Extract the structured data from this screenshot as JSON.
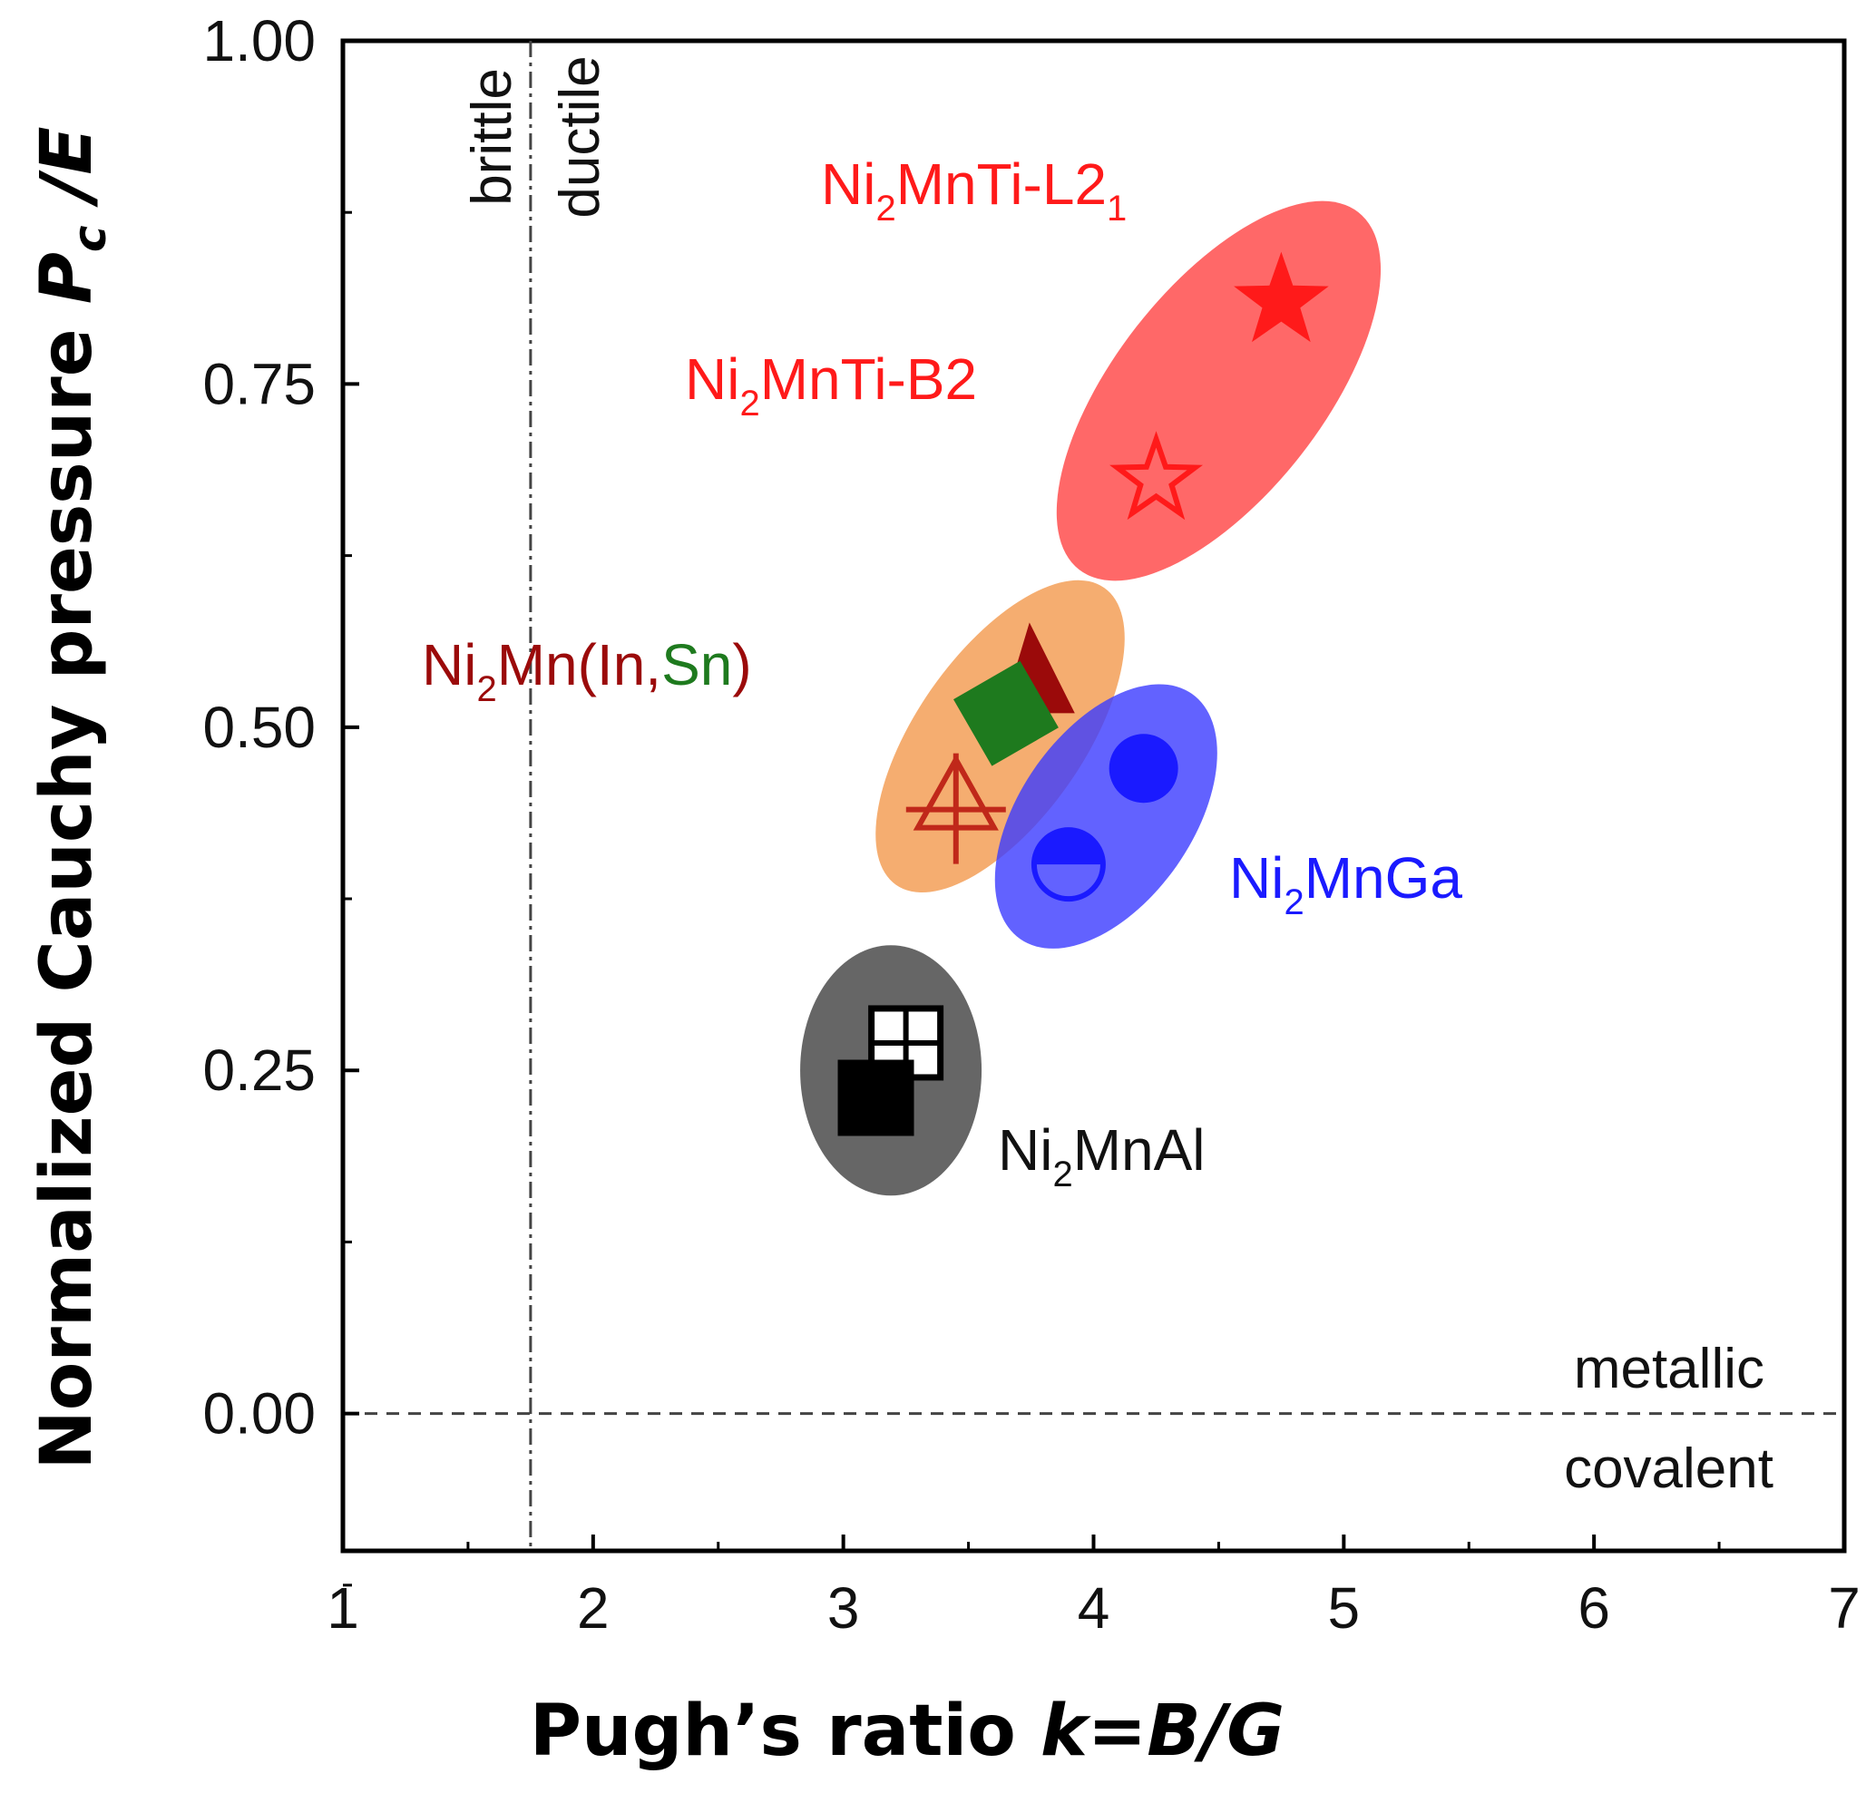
{
  "chart_data": {
    "type": "scatter",
    "title": "",
    "xlabel_prefix": "Pugh’s ratio ",
    "xlabel_italic": "k=B/G",
    "ylabel_prefix": "Normalized Cauchy pressure ",
    "ylabel_italic_p": "P",
    "ylabel_italic_sub": "c",
    "ylabel_italic_suffix": " /E",
    "xlim": [
      1,
      7
    ],
    "ylim": [
      -0.1,
      1.0
    ],
    "x_ticks": [
      "1",
      "2",
      "3",
      "4",
      "5",
      "6",
      "7"
    ],
    "y_ticks": [
      "0.00",
      "0.25",
      "0.50",
      "0.75",
      "1.00"
    ],
    "pugh_threshold": 1.75,
    "cauchy_threshold": 0.0,
    "annotations": {
      "brittle": "brittle",
      "ductile": "ductile",
      "metallic": "metallic",
      "covalent": "covalent"
    },
    "groups": [
      {
        "name": "Ni2MnTi",
        "label_l21": {
          "a": "Ni",
          "sub": "2",
          "b": "MnTi-L2",
          "sub2": "1"
        },
        "label_b2": {
          "a": "Ni",
          "sub": "2",
          "b": "MnTi-B2"
        },
        "color": "#ff1a1a",
        "points": [
          {
            "phase": "L21",
            "marker": "star-filled",
            "x": 4.75,
            "y": 0.81
          },
          {
            "phase": "B2",
            "marker": "star-open",
            "x": 4.25,
            "y": 0.68
          }
        ]
      },
      {
        "name": "Ni2Mn(In,Sn)",
        "label": {
          "a": "Ni",
          "sub": "2",
          "b": "Mn(In,",
          "c": "Sn",
          "d": ")"
        },
        "colors": {
          "In": "#9b0a0a",
          "Sn": "#1e7a1e",
          "cluster": "#f4a460"
        },
        "points": [
          {
            "species": "In",
            "marker": "triangle-filled",
            "x": 3.78,
            "y": 0.53
          },
          {
            "species": "Sn",
            "marker": "diamond-filled",
            "x": 3.65,
            "y": 0.51
          },
          {
            "species": "In",
            "marker": "triangle-crossed",
            "x": 3.45,
            "y": 0.44
          }
        ]
      },
      {
        "name": "Ni2MnGa",
        "label": {
          "a": "Ni",
          "sub": "2",
          "b": "MnGa"
        },
        "color": "#1a1aff",
        "points": [
          {
            "marker": "circle-filled",
            "x": 4.2,
            "y": 0.47
          },
          {
            "marker": "circle-half",
            "x": 3.9,
            "y": 0.4
          }
        ]
      },
      {
        "name": "Ni2MnAl",
        "label": {
          "a": "Ni",
          "sub": "2",
          "b": "MnAl"
        },
        "color": "#000000",
        "points": [
          {
            "marker": "square-grid",
            "x": 3.25,
            "y": 0.27
          },
          {
            "marker": "square-filled",
            "x": 3.13,
            "y": 0.23
          }
        ]
      }
    ]
  }
}
